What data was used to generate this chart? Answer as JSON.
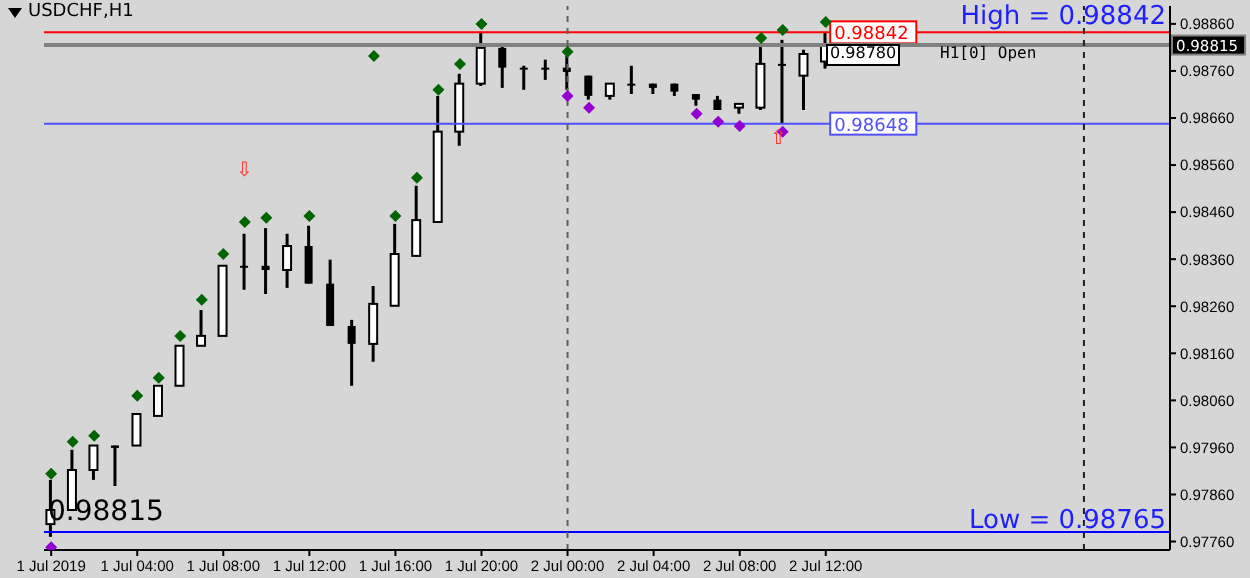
{
  "chart_data": {
    "type": "candlestick",
    "title": "USDCHF,H1",
    "color": "#000000",
    "marker": "diamond",
    "x": [
      "2019-07-01T00:00",
      "2019-07-01T01:00",
      "2019-07-01T02:00",
      "2019-07-01T03:00",
      "2019-07-01T04:00",
      "2019-07-01T05:00",
      "2019-07-01T06:00",
      "2019-07-01T07:00",
      "2019-07-01T08:00",
      "2019-07-01T09:00",
      "2019-07-01T10:00",
      "2019-07-01T11:00",
      "2019-07-01T12:00",
      "2019-07-01T13:00",
      "2019-07-01T14:00",
      "2019-07-01T15:00",
      "2019-07-01T16:00",
      "2019-07-01T17:00",
      "2019-07-01T18:00",
      "2019-07-01T19:00",
      "2019-07-01T20:00",
      "2019-07-01T21:00",
      "2019-07-01T22:00",
      "2019-07-01T23:00",
      "2019-07-02T00:00",
      "2019-07-02T01:00",
      "2019-07-02T02:00",
      "2019-07-02T03:00",
      "2019-07-02T04:00",
      "2019-07-02T05:00",
      "2019-07-02T06:00",
      "2019-07-02T07:00",
      "2019-07-02T08:00",
      "2019-07-02T09:00",
      "2019-07-02T10:00",
      "2019-07-02T11:00",
      "2019-07-02T12:00"
    ],
    "ohlc": [
      [
        0.97797,
        0.97891,
        0.9777,
        0.97827
      ],
      [
        0.97827,
        0.97955,
        0.97827,
        0.97912
      ],
      [
        0.97912,
        0.97964,
        0.97891,
        0.97964
      ],
      [
        0.97964,
        0.97964,
        0.97878,
        0.97959
      ],
      [
        0.97964,
        0.98031,
        0.97964,
        0.98031
      ],
      [
        0.98027,
        0.98091,
        0.98027,
        0.98091
      ],
      [
        0.98091,
        0.98176,
        0.98091,
        0.98176
      ],
      [
        0.98176,
        0.98252,
        0.98176,
        0.98197
      ],
      [
        0.98197,
        0.98346,
        0.98197,
        0.98346
      ],
      [
        0.98346,
        0.98414,
        0.98295,
        0.98346
      ],
      [
        0.98346,
        0.98426,
        0.98286,
        0.98337
      ],
      [
        0.98337,
        0.98414,
        0.98299,
        0.98388
      ],
      [
        0.98388,
        0.98431,
        0.98308,
        0.98308
      ],
      [
        0.98308,
        0.98359,
        0.98218,
        0.98218
      ],
      [
        0.98218,
        0.98231,
        0.98091,
        0.9818
      ],
      [
        0.9818,
        0.98303,
        0.98142,
        0.98265
      ],
      [
        0.98261,
        0.98435,
        0.98261,
        0.98371
      ],
      [
        0.98367,
        0.98516,
        0.98367,
        0.98443
      ],
      [
        0.98439,
        0.98707,
        0.98439,
        0.98631
      ],
      [
        0.98631,
        0.98754,
        0.98601,
        0.98733
      ],
      [
        0.98733,
        0.98843,
        0.98728,
        0.98809
      ],
      [
        0.98809,
        0.98813,
        0.98724,
        0.98767
      ],
      [
        0.98767,
        0.98771,
        0.9872,
        0.98767
      ],
      [
        0.98767,
        0.98784,
        0.98741,
        0.98767
      ],
      [
        0.98767,
        0.98792,
        0.9872,
        0.98758
      ],
      [
        0.9875,
        0.9875,
        0.98699,
        0.98707
      ],
      [
        0.98707,
        0.98733,
        0.98699,
        0.98733
      ],
      [
        0.98733,
        0.98771,
        0.98711,
        0.98733
      ],
      [
        0.98733,
        0.98733,
        0.98711,
        0.98724
      ],
      [
        0.98733,
        0.98733,
        0.98707,
        0.98716
      ],
      [
        0.98711,
        0.98711,
        0.98686,
        0.98699
      ],
      [
        0.98699,
        0.98707,
        0.98677,
        0.98677
      ],
      [
        0.98682,
        0.9869,
        0.98669,
        0.9869
      ],
      [
        0.98682,
        0.98818,
        0.98677,
        0.98775
      ],
      [
        0.98775,
        0.98826,
        0.98648,
        0.98775
      ],
      [
        0.9875,
        0.98805,
        0.98677,
        0.98796
      ],
      [
        0.9878,
        0.98842,
        0.98765,
        0.98815
      ]
    ],
    "series": [
      {
        "type": "scatter",
        "color": "#006400",
        "values": [
          0.97904,
          0.97972,
          0.97985,
          null,
          0.9807,
          0.98108,
          0.98197,
          0.98274,
          0.98371,
          0.98439,
          0.98448,
          null,
          0.98452,
          null,
          null,
          0.98792,
          0.98452,
          0.98533,
          0.9872,
          0.98775,
          0.9886,
          null,
          null,
          null,
          0.98801,
          null,
          null,
          null,
          null,
          null,
          null,
          null,
          null,
          0.9883,
          0.98847,
          null,
          0.98864
        ]
      },
      {
        "type": "scatter",
        "color": "#9400d3",
        "values": [
          0.97748,
          null,
          null,
          null,
          null,
          null,
          null,
          null,
          null,
          null,
          null,
          null,
          null,
          null,
          null,
          null,
          null,
          null,
          null,
          null,
          null,
          null,
          null,
          null,
          0.98707,
          0.98682,
          null,
          null,
          null,
          null,
          0.98669,
          0.98652,
          0.98643,
          null,
          0.98631,
          null,
          null
        ]
      }
    ],
    "xlim": [
      "2019-06-30T23:40",
      "2019-07-03T04:00"
    ],
    "xticks": [
      {
        "value": "2019-07-01T00:00",
        "label": "1 Jul 2019"
      },
      {
        "value": "2019-07-01T04:00",
        "label": "1 Jul 04:00"
      },
      {
        "value": "2019-07-01T08:00",
        "label": "1 Jul 08:00"
      },
      {
        "value": "2019-07-01T12:00",
        "label": "1 Jul 12:00"
      },
      {
        "value": "2019-07-01T16:00",
        "label": "1 Jul 16:00"
      },
      {
        "value": "2019-07-01T20:00",
        "label": "1 Jul 20:00"
      },
      {
        "value": "2019-07-02T00:00",
        "label": "2 Jul 00:00"
      },
      {
        "value": "2019-07-02T04:00",
        "label": "2 Jul 04:00"
      },
      {
        "value": "2019-07-02T08:00",
        "label": "2 Jul 08:00"
      },
      {
        "value": "2019-07-02T12:00",
        "label": "2 Jul 12:00"
      }
    ],
    "ylim": [
      0.97742,
      0.98898
    ],
    "yticks": [
      {
        "value": 0.9776,
        "label": "0.97760"
      },
      {
        "value": 0.9786,
        "label": "0.97860"
      },
      {
        "value": 0.9796,
        "label": "0.97960"
      },
      {
        "value": 0.9806,
        "label": "0.98060"
      },
      {
        "value": 0.9816,
        "label": "0.98160"
      },
      {
        "value": 0.9826,
        "label": "0.98260"
      },
      {
        "value": 0.9836,
        "label": "0.98360"
      },
      {
        "value": 0.9846,
        "label": "0.98460"
      },
      {
        "value": 0.9856,
        "label": "0.98560"
      },
      {
        "value": 0.9866,
        "label": "0.98660"
      },
      {
        "value": 0.9876,
        "label": "0.98760"
      },
      {
        "value": 0.9886,
        "label": "0.98860"
      }
    ],
    "ref_lines": [
      {
        "axis": "y",
        "value": 0.98842,
        "label": "0.98842",
        "color": "#ff0000"
      },
      {
        "axis": "y",
        "value": 0.98648,
        "label": "0.98648",
        "color": "#5050ff"
      },
      {
        "axis": "y",
        "value": 0.98815,
        "label": "0.98815",
        "color": "#808080"
      },
      {
        "axis": "y",
        "value": 0.9778,
        "color": "#0000ff"
      },
      {
        "axis": "x",
        "value": "2019-07-02T00:00",
        "color": "#606060",
        "line_style": "dashed"
      },
      {
        "axis": "x",
        "value": "2019-07-03T00:00",
        "color": "#202020",
        "line_style": "dashed"
      }
    ],
    "annotations": [
      "High = 0.98842",
      "Low = 0.98765",
      "0.98815",
      "0.98780",
      "H1[0] Open",
      "⇩",
      "⇧"
    ]
  }
}
